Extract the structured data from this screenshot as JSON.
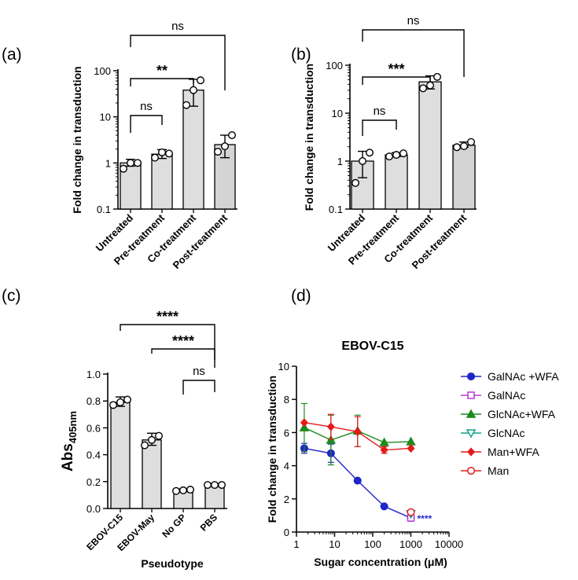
{
  "panels": [
    "(a)",
    "(b)",
    "(c)",
    "(d)"
  ],
  "chart_data": [
    {
      "id": "a",
      "type": "bar",
      "scale": "log",
      "ylabel": "Fold change in transduction",
      "ylim": [
        0.1,
        100
      ],
      "yticks": [
        "0.1",
        "1",
        "10",
        "100"
      ],
      "categories": [
        "Untreated",
        "Pre-treatment",
        "Co-treatment",
        "Post-treatment"
      ],
      "values": [
        1.0,
        1.55,
        38,
        2.5
      ],
      "err_low": [
        0.85,
        1.25,
        17,
        1.3
      ],
      "err_high": [
        1.2,
        1.95,
        65,
        4.0
      ],
      "points": [
        [
          0.75,
          1.0,
          1.0
        ],
        [
          1.3,
          1.7,
          1.6
        ],
        [
          18,
          38,
          62
        ],
        [
          1.75,
          2.3,
          4.0
        ]
      ],
      "brackets": [
        {
          "from": 0,
          "to": 1,
          "label": "ns"
        },
        {
          "from": 0,
          "to": 2,
          "label": "**"
        },
        {
          "from": 0,
          "to": 3,
          "label": "ns"
        }
      ]
    },
    {
      "id": "b",
      "type": "bar",
      "scale": "log",
      "ylabel": "Fold change in transduction",
      "ylim": [
        0.1,
        100
      ],
      "yticks": [
        "0.1",
        "1",
        "10",
        "100"
      ],
      "categories": [
        "Untreated",
        "Pre-treatment",
        "Co-treatment",
        "Post-treatment"
      ],
      "values": [
        1.0,
        1.35,
        45,
        2.15
      ],
      "err_low": [
        0.45,
        1.25,
        32,
        1.95
      ],
      "err_high": [
        1.6,
        1.5,
        60,
        2.5
      ],
      "points": [
        [
          0.35,
          1.0,
          1.5
        ],
        [
          1.25,
          1.35,
          1.45
        ],
        [
          33,
          38,
          57
        ],
        [
          1.95,
          2.05,
          2.5
        ]
      ],
      "brackets": [
        {
          "from": 0,
          "to": 1,
          "label": "ns"
        },
        {
          "from": 0,
          "to": 2,
          "label": "***"
        },
        {
          "from": 0,
          "to": 3,
          "label": "ns"
        }
      ]
    },
    {
      "id": "c",
      "type": "bar",
      "scale": "linear",
      "ylabel": "Abs",
      "ylabel_sub": "405nm",
      "xlabel": "Pseudotype",
      "ylim": [
        0,
        1.0
      ],
      "yticks": [
        "0.0",
        "0.2",
        "0.4",
        "0.6",
        "0.8",
        "1.0"
      ],
      "categories": [
        "EBOV-C15",
        "EBOV-May",
        "No GP",
        "PBS"
      ],
      "values": [
        0.79,
        0.51,
        0.135,
        0.175
      ],
      "err_low": [
        0.76,
        0.47,
        0.125,
        0.17
      ],
      "err_high": [
        0.83,
        0.56,
        0.145,
        0.18
      ],
      "points": [
        [
          0.77,
          0.79,
          0.81
        ],
        [
          0.47,
          0.51,
          0.54
        ],
        [
          0.13,
          0.135,
          0.14
        ],
        [
          0.175,
          0.175,
          0.175
        ]
      ],
      "brackets": [
        {
          "from": 2,
          "to": 3,
          "label": "ns"
        },
        {
          "from": 1,
          "to": 3,
          "label": "****"
        },
        {
          "from": 0,
          "to": 3,
          "label": "****"
        }
      ]
    },
    {
      "id": "d",
      "type": "line",
      "xscale": "log",
      "title": "EBOV-C15",
      "xlabel": "Sugar concentration (μM)",
      "ylabel": "Fold change in transduction",
      "xlim": [
        1,
        10000
      ],
      "ylim": [
        0,
        10
      ],
      "xticks": [
        "1",
        "10",
        "100",
        "1000",
        "10000"
      ],
      "yticks": [
        "0",
        "2",
        "4",
        "6",
        "8",
        "10"
      ],
      "annotation": "****",
      "series": [
        {
          "name": "GalNAc +WFA",
          "color": "#1f26c8",
          "marker": "circle",
          "filled": true,
          "x": [
            1.6,
            8,
            40,
            200,
            1000
          ],
          "y": [
            5.05,
            4.75,
            3.1,
            1.55,
            0.85
          ],
          "err": [
            0.3,
            0.55,
            0,
            0,
            0
          ]
        },
        {
          "name": "GalNAc",
          "color": "#b43cd7",
          "marker": "square",
          "filled": false,
          "x": [
            1000
          ],
          "y": [
            0.85
          ],
          "err": [
            0
          ]
        },
        {
          "name": "GlcNAc+WFA",
          "color": "#1f8a1f",
          "marker": "triangle-up",
          "filled": true,
          "x": [
            1.6,
            8,
            40,
            200,
            1000
          ],
          "y": [
            6.3,
            5.55,
            6.1,
            5.4,
            5.45
          ],
          "err": [
            1.45,
            1.5,
            0.95,
            0,
            0
          ]
        },
        {
          "name": "GlcNAc",
          "color": "#15a08a",
          "marker": "triangle-down",
          "filled": false,
          "x": [
            1000
          ],
          "y": [
            1.1
          ],
          "err": [
            0
          ]
        },
        {
          "name": "Man+WFA",
          "color": "#e41a1a",
          "marker": "diamond",
          "filled": true,
          "x": [
            1.6,
            8,
            40,
            200,
            1000
          ],
          "y": [
            6.6,
            6.35,
            6.05,
            4.95,
            5.05
          ],
          "err": [
            0,
            0.75,
            0.9,
            0.2,
            0
          ]
        },
        {
          "name": "Man",
          "color": "#e41a1a",
          "marker": "circle",
          "filled": false,
          "x": [
            1000
          ],
          "y": [
            1.2
          ],
          "err": [
            0
          ]
        }
      ]
    }
  ]
}
